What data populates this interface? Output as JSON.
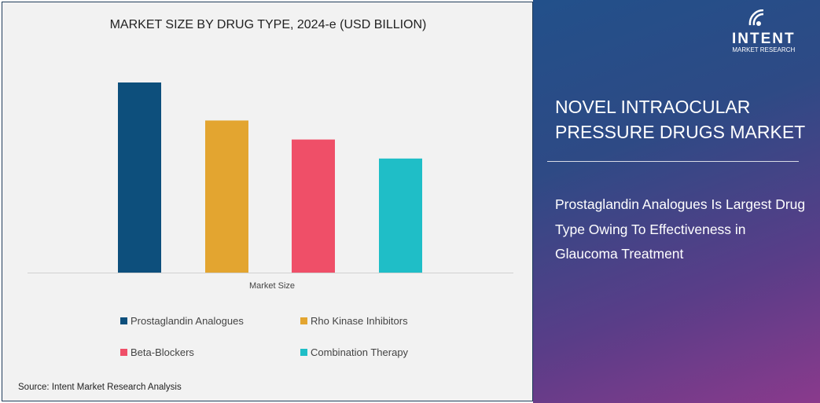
{
  "chart_data": {
    "type": "bar",
    "title": "MARKET SIZE BY DRUG TYPE, 2024-e (USD BILLION)",
    "categories": [
      "Market Size"
    ],
    "series": [
      {
        "name": "Prostaglandin Analogues",
        "values": [
          1.0
        ],
        "color": "#0d4f7c"
      },
      {
        "name": "Rho Kinase Inhibitors",
        "values": [
          0.8
        ],
        "color": "#e3a530"
      },
      {
        "name": "Beta-Blockers",
        "values": [
          0.7
        ],
        "color": "#ef4f68"
      },
      {
        "name": "Combination Therapy",
        "values": [
          0.6
        ],
        "color": "#1fbec7"
      }
    ],
    "value_note_relative": true,
    "ylim": [
      0,
      1.0
    ],
    "grid": false,
    "legend": "bottom"
  },
  "source": "Source:  Intent Market Research Analysis",
  "panel": {
    "logo_word": "INTENT",
    "logo_sub": "MARKET RESEARCH",
    "title": "NOVEL INTRAOCULAR PRESSURE DRUGS MARKET",
    "subtitle": "Prostaglandin Analogues Is Largest Drug Type Owing To Effectiveness in Glaucoma Treatment"
  }
}
